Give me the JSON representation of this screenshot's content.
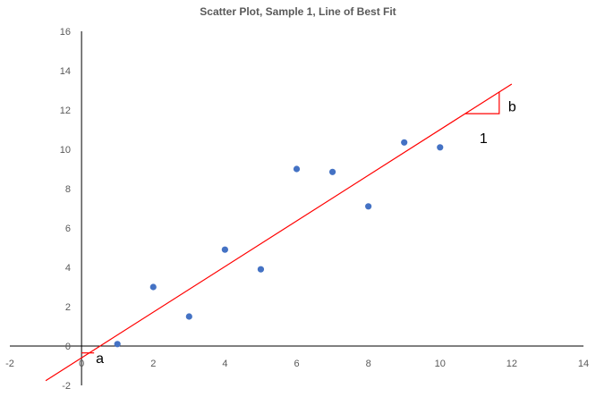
{
  "chart_data": {
    "type": "scatter",
    "title": "Scatter Plot, Sample 1, Line of Best Fit",
    "xlabel": "",
    "ylabel": "",
    "xlim": [
      -2,
      14
    ],
    "ylim": [
      -2,
      16
    ],
    "x_ticks": [
      "-2",
      "0",
      "2",
      "4",
      "6",
      "8",
      "10",
      "12",
      "14"
    ],
    "y_ticks": [
      "-2",
      "0",
      "2",
      "4",
      "6",
      "8",
      "10",
      "12",
      "14",
      "16"
    ],
    "grid": false,
    "legend": "none",
    "points": [
      {
        "x": 1,
        "y": 0.1
      },
      {
        "x": 2,
        "y": 3.0
      },
      {
        "x": 3,
        "y": 1.5
      },
      {
        "x": 4,
        "y": 4.9
      },
      {
        "x": 5,
        "y": 3.9
      },
      {
        "x": 6,
        "y": 9.0
      },
      {
        "x": 7,
        "y": 8.85
      },
      {
        "x": 8,
        "y": 7.1
      },
      {
        "x": 9,
        "y": 10.35
      },
      {
        "x": 10,
        "y": 10.1
      }
    ],
    "point_color": "#4472c4",
    "fit_line": {
      "slope": 1.16,
      "intercept": -0.6,
      "x_start": -1,
      "x_end": 12,
      "color": "#ff0000"
    },
    "annotations": [
      {
        "label": "a",
        "x": 0.4,
        "y": -0.6
      },
      {
        "label": "b",
        "x": 11.9,
        "y": 12.2
      },
      {
        "label": "1",
        "x": 11.1,
        "y": 10.6
      }
    ]
  }
}
